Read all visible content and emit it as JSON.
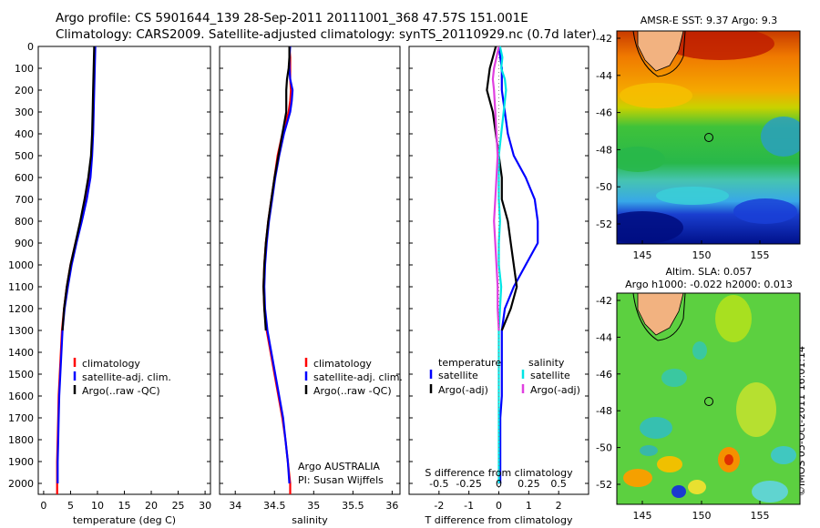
{
  "header": {
    "line1": "Argo profile: CS 5901644_139 28-Sep-2011 20111001_368 47.57S 151.001E",
    "line2": "Climatology: CARS2009. Satellite-adjusted climatology: synTS_20110929.nc (0.7d later)"
  },
  "credit": "©IMOS 05-Oct-2011 16:01:14",
  "colors": {
    "red": "#ff0000",
    "blue": "#0000ff",
    "black": "#000000",
    "cyan": "#00e5e5",
    "magenta": "#e040e0",
    "land": "#f2b280"
  },
  "chart_data": [
    {
      "type": "line",
      "name": "temperature",
      "xlabel": "temperature (deg C)",
      "xlim": [
        -1,
        31
      ],
      "ylim": [
        2050,
        0
      ],
      "xticks": [
        "0",
        "5",
        "10",
        "15",
        "20",
        "25",
        "30"
      ],
      "yticks": [
        "0",
        "100",
        "200",
        "300",
        "400",
        "500",
        "600",
        "700",
        "800",
        "900",
        "1000",
        "1100",
        "1200",
        "1300",
        "1400",
        "1500",
        "1600",
        "1700",
        "1800",
        "1900",
        "2000"
      ],
      "legend": [
        "climatology",
        "satellite-adj. clim.",
        "Argo(..raw -QC)"
      ],
      "legend_position": "lower-middle",
      "series": [
        {
          "name": "climatology",
          "color": "#ff0000",
          "depth": [
            0,
            100,
            200,
            300,
            400,
            500,
            600,
            700,
            800,
            900,
            1000,
            1100,
            1200,
            1300,
            1400,
            1500,
            1600,
            1700,
            1800,
            1900,
            2000,
            2050
          ],
          "values": [
            9.5,
            9.4,
            9.3,
            9.2,
            9.1,
            8.9,
            8.5,
            7.8,
            6.9,
            5.9,
            5.0,
            4.3,
            3.8,
            3.4,
            3.2,
            3.0,
            2.8,
            2.7,
            2.6,
            2.5,
            2.5,
            2.5
          ]
        },
        {
          "name": "satellite-adj. clim.",
          "color": "#0000ff",
          "depth": [
            0,
            100,
            200,
            300,
            400,
            500,
            600,
            700,
            800,
            900,
            1000,
            1100,
            1200,
            1300,
            1400,
            1500,
            1600,
            1700,
            1800,
            1900,
            2000
          ],
          "values": [
            9.6,
            9.5,
            9.4,
            9.3,
            9.2,
            9.0,
            8.7,
            8.0,
            7.1,
            6.1,
            5.2,
            4.5,
            3.9,
            3.5,
            3.3,
            3.1,
            2.9,
            2.8,
            2.7,
            2.6,
            2.6
          ]
        },
        {
          "name": "Argo(..raw -QC)",
          "color": "#000000",
          "depth": [
            0,
            100,
            200,
            300,
            400,
            500,
            600,
            700,
            800,
            900,
            1000,
            1100,
            1200,
            1300
          ],
          "values": [
            9.4,
            9.3,
            9.2,
            9.1,
            9.0,
            8.8,
            8.3,
            7.6,
            6.8,
            5.9,
            5.0,
            4.3,
            3.8,
            3.5
          ]
        }
      ]
    },
    {
      "type": "line",
      "name": "salinity",
      "xlabel": "salinity",
      "xlim": [
        33.8,
        36.1
      ],
      "ylim": [
        2050,
        0
      ],
      "xticks": [
        "34",
        "34.5",
        "35",
        "35.5",
        "36"
      ],
      "legend": [
        "climatology",
        "satellite-adj. clim.",
        "Argo(..raw -QC)"
      ],
      "annotation": [
        "Argo AUSTRALIA",
        "PI: Susan Wijffels"
      ],
      "series": [
        {
          "name": "climatology",
          "color": "#ff0000",
          "depth": [
            0,
            50,
            100,
            150,
            200,
            250,
            300,
            400,
            500,
            600,
            700,
            800,
            900,
            1000,
            1100,
            1200,
            1300,
            1400,
            1500,
            1600,
            1700,
            1800,
            1900,
            2000,
            2050
          ],
          "values": [
            34.69,
            34.7,
            34.7,
            34.7,
            34.71,
            34.7,
            34.68,
            34.6,
            34.54,
            34.5,
            34.46,
            34.42,
            34.39,
            34.37,
            34.36,
            34.37,
            34.4,
            34.45,
            34.5,
            34.55,
            34.6,
            34.64,
            34.67,
            34.7,
            34.7
          ]
        },
        {
          "name": "satellite-adj. clim.",
          "color": "#0000ff",
          "depth": [
            0,
            50,
            100,
            150,
            200,
            250,
            300,
            400,
            500,
            600,
            700,
            800,
            900,
            1000,
            1100,
            1200,
            1300,
            1400,
            1500,
            1600,
            1700,
            1800,
            1900,
            2000
          ],
          "values": [
            34.7,
            34.69,
            34.69,
            34.7,
            34.73,
            34.72,
            34.7,
            34.62,
            34.56,
            34.51,
            34.47,
            34.43,
            34.4,
            34.38,
            34.37,
            34.38,
            34.41,
            34.46,
            34.51,
            34.56,
            34.61,
            34.64,
            34.67,
            34.69
          ]
        },
        {
          "name": "Argo(..raw -QC)",
          "color": "#000000",
          "depth": [
            0,
            50,
            100,
            150,
            200,
            250,
            300,
            400,
            500,
            600,
            700,
            800,
            900,
            1000,
            1100,
            1200,
            1300
          ],
          "values": [
            34.69,
            34.69,
            34.68,
            34.66,
            34.65,
            34.65,
            34.65,
            34.6,
            34.55,
            34.5,
            34.46,
            34.42,
            34.39,
            34.37,
            34.36,
            34.37,
            34.39
          ]
        }
      ]
    },
    {
      "type": "line",
      "name": "difference",
      "xlabel": "T difference from climatology",
      "xlabel2": "S difference from climatology",
      "xlim": [
        -3,
        3
      ],
      "ylim": [
        2050,
        0
      ],
      "xticks": [
        "-2",
        "-1",
        "0",
        "1",
        "2"
      ],
      "xticks2": [
        "-0.5",
        "-0.25",
        "0",
        "0.25",
        "0.5"
      ],
      "legend_temperature": {
        "title": "temperature",
        "items": [
          "satellite",
          "Argo(-adj)"
        ]
      },
      "legend_salinity": {
        "title": "salinity",
        "items": [
          "satellite",
          "Argo(-adj)"
        ]
      },
      "series": [
        {
          "name": "T satellite",
          "color": "#0000ff",
          "depth": [
            0,
            100,
            200,
            300,
            400,
            500,
            600,
            700,
            800,
            900,
            1000,
            1100,
            1200,
            1300,
            1400,
            1500,
            1600,
            1700,
            1800,
            1900,
            2000
          ],
          "values": [
            0.0,
            0.1,
            0.1,
            0.2,
            0.3,
            0.5,
            0.9,
            1.2,
            1.3,
            1.3,
            0.9,
            0.5,
            0.2,
            0.1,
            0.1,
            0.1,
            0.1,
            0.05,
            0.05,
            0.05,
            0.05
          ]
        },
        {
          "name": "T Argo(-adj)",
          "color": "#000000",
          "depth": [
            0,
            50,
            100,
            200,
            300,
            400,
            500,
            600,
            700,
            800,
            900,
            1000,
            1100,
            1200,
            1300
          ],
          "values": [
            -0.1,
            -0.2,
            -0.3,
            -0.4,
            -0.2,
            -0.1,
            0.0,
            0.1,
            0.1,
            0.3,
            0.4,
            0.5,
            0.6,
            0.4,
            0.1
          ]
        },
        {
          "name": "S satellite",
          "color": "#00e5e5",
          "depth": [
            0,
            50,
            100,
            150,
            200,
            250,
            300,
            400,
            500,
            600,
            700,
            800,
            900,
            1000,
            1100,
            1200,
            1300,
            1400,
            1500,
            1600,
            1700,
            1800,
            1900,
            2000
          ],
          "values": [
            0.01,
            0.03,
            0.02,
            0.05,
            0.06,
            0.05,
            0.04,
            0.02,
            0.0,
            0.0,
            0.0,
            0.01,
            0.0,
            0.0,
            0.02,
            0.01,
            0.0,
            0.0,
            0.0,
            0.0,
            0.0,
            0.0,
            0.0,
            0.0
          ]
        },
        {
          "name": "S Argo(-adj)",
          "color": "#e040e0",
          "depth": [
            0,
            50,
            100,
            150,
            200,
            300,
            400,
            500,
            600,
            700,
            800,
            900,
            1000,
            1100,
            1200,
            1300
          ],
          "values": [
            0.0,
            -0.02,
            -0.04,
            -0.05,
            -0.04,
            -0.03,
            -0.02,
            -0.01,
            -0.02,
            -0.03,
            -0.04,
            -0.03,
            -0.02,
            -0.01,
            -0.01,
            0.0
          ]
        }
      ]
    },
    {
      "type": "heatmap",
      "name": "sst-map",
      "title": "AMSR-E SST: 9.37 Argo: 9.3",
      "xticks": [
        "145",
        "150",
        "155"
      ],
      "yticks": [
        "-42",
        "-44",
        "-46",
        "-48",
        "-50",
        "-52"
      ],
      "marker": {
        "lon": 151.0,
        "lat": -47.57
      }
    },
    {
      "type": "heatmap",
      "name": "sla-map",
      "title_line1": "Altim. SLA: 0.057",
      "title_line2": "Argo h1000: -0.022 h2000: 0.013",
      "xticks": [
        "145",
        "150",
        "155"
      ],
      "yticks": [
        "-42",
        "-44",
        "-46",
        "-48",
        "-50",
        "-52"
      ],
      "marker": {
        "lon": 151.0,
        "lat": -47.57
      }
    }
  ]
}
